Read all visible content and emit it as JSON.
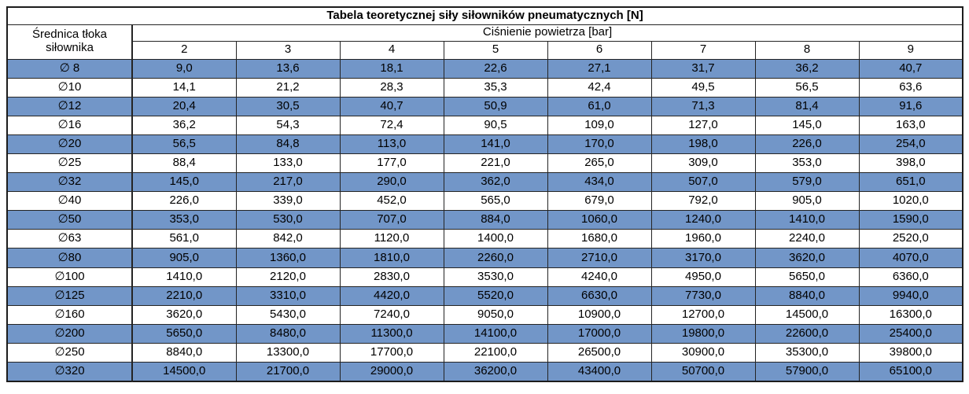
{
  "title": "Tabela teoretycznej siły siłowników pneumatycznych [N]",
  "headers": {
    "diameter_label": "Średnica tłoka siłownika",
    "pressure_label": "Ciśnienie powietrza [bar]",
    "pressure_values": [
      "2",
      "3",
      "4",
      "5",
      "6",
      "7",
      "8",
      "9"
    ]
  },
  "table": {
    "rows": [
      {
        "diameter": "∅ 8",
        "cells": [
          "9,0",
          "13,6",
          "18,1",
          "22,6",
          "27,1",
          "31,7",
          "36,2",
          "40,7"
        ]
      },
      {
        "diameter": "∅10",
        "cells": [
          "14,1",
          "21,2",
          "28,3",
          "35,3",
          "42,4",
          "49,5",
          "56,5",
          "63,6"
        ]
      },
      {
        "diameter": "∅12",
        "cells": [
          "20,4",
          "30,5",
          "40,7",
          "50,9",
          "61,0",
          "71,3",
          "81,4",
          "91,6"
        ]
      },
      {
        "diameter": "∅16",
        "cells": [
          "36,2",
          "54,3",
          "72,4",
          "90,5",
          "109,0",
          "127,0",
          "145,0",
          "163,0"
        ]
      },
      {
        "diameter": "∅20",
        "cells": [
          "56,5",
          "84,8",
          "113,0",
          "141,0",
          "170,0",
          "198,0",
          "226,0",
          "254,0"
        ]
      },
      {
        "diameter": "∅25",
        "cells": [
          "88,4",
          "133,0",
          "177,0",
          "221,0",
          "265,0",
          "309,0",
          "353,0",
          "398,0"
        ]
      },
      {
        "diameter": "∅32",
        "cells": [
          "145,0",
          "217,0",
          "290,0",
          "362,0",
          "434,0",
          "507,0",
          "579,0",
          "651,0"
        ]
      },
      {
        "diameter": "∅40",
        "cells": [
          "226,0",
          "339,0",
          "452,0",
          "565,0",
          "679,0",
          "792,0",
          "905,0",
          "1020,0"
        ]
      },
      {
        "diameter": "∅50",
        "cells": [
          "353,0",
          "530,0",
          "707,0",
          "884,0",
          "1060,0",
          "1240,0",
          "1410,0",
          "1590,0"
        ]
      },
      {
        "diameter": "∅63",
        "cells": [
          "561,0",
          "842,0",
          "1120,0",
          "1400,0",
          "1680,0",
          "1960,0",
          "2240,0",
          "2520,0"
        ]
      },
      {
        "diameter": "∅80",
        "cells": [
          "905,0",
          "1360,0",
          "1810,0",
          "2260,0",
          "2710,0",
          "3170,0",
          "3620,0",
          "4070,0"
        ]
      },
      {
        "diameter": "∅100",
        "cells": [
          "1410,0",
          "2120,0",
          "2830,0",
          "3530,0",
          "4240,0",
          "4950,0",
          "5650,0",
          "6360,0"
        ]
      },
      {
        "diameter": "∅125",
        "cells": [
          "2210,0",
          "3310,0",
          "4420,0",
          "5520,0",
          "6630,0",
          "7730,0",
          "8840,0",
          "9940,0"
        ]
      },
      {
        "diameter": "∅160",
        "cells": [
          "3620,0",
          "5430,0",
          "7240,0",
          "9050,0",
          "10900,0",
          "12700,0",
          "14500,0",
          "16300,0"
        ]
      },
      {
        "diameter": "∅200",
        "cells": [
          "5650,0",
          "8480,0",
          "11300,0",
          "14100,0",
          "17000,0",
          "19800,0",
          "22600,0",
          "25400,0"
        ]
      },
      {
        "diameter": "∅250",
        "cells": [
          "8840,0",
          "13300,0",
          "17700,0",
          "22100,0",
          "26500,0",
          "30900,0",
          "35300,0",
          "39800,0"
        ]
      },
      {
        "diameter": "∅320",
        "cells": [
          "14500,0",
          "21700,0",
          "29000,0",
          "36200,0",
          "43400,0",
          "50700,0",
          "57900,0",
          "65100,0"
        ]
      }
    ]
  },
  "colors": {
    "row_highlight_blue": "#7296C8",
    "border": "#242424",
    "text": "#000000",
    "background": "#FFFFFF"
  },
  "chart_data": {
    "type": "table",
    "title": "Tabela teoretycznej siły siłowników pneumatycznych [N]",
    "columns_group_label": "Ciśnienie powietrza [bar]",
    "rows_group_label": "Średnica tłoka siłownika",
    "pressures_bar": [
      2,
      3,
      4,
      5,
      6,
      7,
      8,
      9
    ],
    "diameters": [
      "∅ 8",
      "∅10",
      "∅12",
      "∅16",
      "∅20",
      "∅25",
      "∅32",
      "∅40",
      "∅50",
      "∅63",
      "∅80",
      "∅100",
      "∅125",
      "∅160",
      "∅200",
      "∅250",
      "∅320"
    ],
    "values_N": [
      [
        9.0,
        13.6,
        18.1,
        22.6,
        27.1,
        31.7,
        36.2,
        40.7
      ],
      [
        14.1,
        21.2,
        28.3,
        35.3,
        42.4,
        49.5,
        56.5,
        63.6
      ],
      [
        20.4,
        30.5,
        40.7,
        50.9,
        61.0,
        71.3,
        81.4,
        91.6
      ],
      [
        36.2,
        54.3,
        72.4,
        90.5,
        109.0,
        127.0,
        145.0,
        163.0
      ],
      [
        56.5,
        84.8,
        113.0,
        141.0,
        170.0,
        198.0,
        226.0,
        254.0
      ],
      [
        88.4,
        133.0,
        177.0,
        221.0,
        265.0,
        309.0,
        353.0,
        398.0
      ],
      [
        145.0,
        217.0,
        290.0,
        362.0,
        434.0,
        507.0,
        579.0,
        651.0
      ],
      [
        226.0,
        339.0,
        452.0,
        565.0,
        679.0,
        792.0,
        905.0,
        1020.0
      ],
      [
        353.0,
        530.0,
        707.0,
        884.0,
        1060.0,
        1240.0,
        1410.0,
        1590.0
      ],
      [
        561.0,
        842.0,
        1120.0,
        1400.0,
        1680.0,
        1960.0,
        2240.0,
        2520.0
      ],
      [
        905.0,
        1360.0,
        1810.0,
        2260.0,
        2710.0,
        3170.0,
        3620.0,
        4070.0
      ],
      [
        1410.0,
        2120.0,
        2830.0,
        3530.0,
        4240.0,
        4950.0,
        5650.0,
        6360.0
      ],
      [
        2210.0,
        3310.0,
        4420.0,
        5520.0,
        6630.0,
        7730.0,
        8840.0,
        9940.0
      ],
      [
        3620.0,
        5430.0,
        7240.0,
        9050.0,
        10900.0,
        12700.0,
        14500.0,
        16300.0
      ],
      [
        5650.0,
        8480.0,
        11300.0,
        14100.0,
        17000.0,
        19800.0,
        22600.0,
        25400.0
      ],
      [
        8840.0,
        13300.0,
        17700.0,
        22100.0,
        26500.0,
        30900.0,
        35300.0,
        39800.0
      ],
      [
        14500.0,
        21700.0,
        29000.0,
        36200.0,
        43400.0,
        50700.0,
        57900.0,
        65100.0
      ]
    ]
  }
}
